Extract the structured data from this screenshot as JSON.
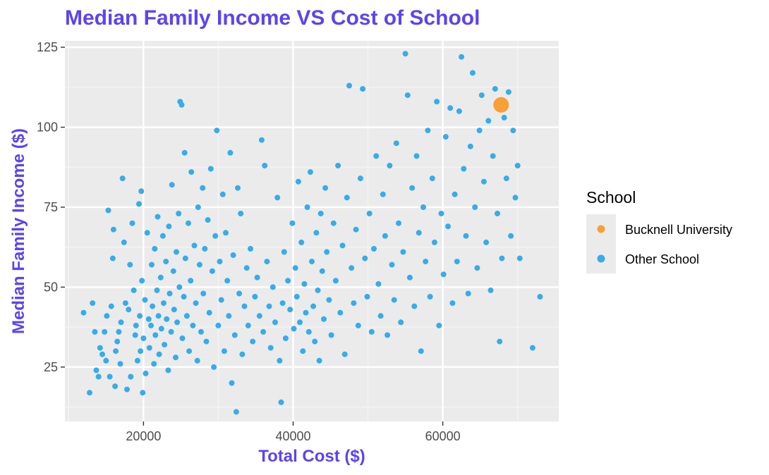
{
  "chart_data": {
    "type": "scatter",
    "title": "Median Family Income VS Cost of School",
    "xlabel": "Total Cost ($)",
    "ylabel": "Median Family Income ($)",
    "xlim": [
      9500,
      75500
    ],
    "ylim": [
      8,
      127
    ],
    "x_ticks": [
      20000,
      40000,
      60000
    ],
    "y_ticks": [
      25,
      50,
      75,
      100,
      125
    ],
    "grid": true,
    "legend": {
      "title": "School",
      "position": "right",
      "entries": [
        {
          "label": "Bucknell University",
          "color": "#F8A035"
        },
        {
          "label": "Other School",
          "color": "#35ACEB"
        }
      ]
    },
    "series": [
      {
        "name": "Bucknell University",
        "color": "#F8A035",
        "points": [
          [
            67800,
            107
          ]
        ]
      },
      {
        "name": "Other School",
        "color": "#35ACEB",
        "points": [
          [
            12000,
            42
          ],
          [
            12800,
            17
          ],
          [
            13200,
            45
          ],
          [
            13500,
            36
          ],
          [
            13700,
            24
          ],
          [
            14000,
            22
          ],
          [
            14200,
            31
          ],
          [
            14500,
            29
          ],
          [
            14800,
            36
          ],
          [
            15000,
            27
          ],
          [
            15100,
            41
          ],
          [
            15300,
            74
          ],
          [
            15500,
            22
          ],
          [
            15700,
            44
          ],
          [
            15900,
            59
          ],
          [
            16000,
            68
          ],
          [
            16200,
            19
          ],
          [
            16300,
            30
          ],
          [
            16500,
            33
          ],
          [
            16700,
            36
          ],
          [
            16900,
            26
          ],
          [
            17000,
            39
          ],
          [
            17200,
            84
          ],
          [
            17400,
            64
          ],
          [
            17600,
            45
          ],
          [
            17800,
            18
          ],
          [
            18000,
            43
          ],
          [
            18200,
            57
          ],
          [
            18300,
            22
          ],
          [
            18500,
            70
          ],
          [
            18700,
            49
          ],
          [
            18900,
            35
          ],
          [
            19000,
            38
          ],
          [
            19200,
            27
          ],
          [
            19400,
            76
          ],
          [
            19500,
            41
          ],
          [
            19600,
            30
          ],
          [
            19700,
            80
          ],
          [
            19800,
            52
          ],
          [
            19900,
            17
          ],
          [
            20000,
            34
          ],
          [
            20200,
            46
          ],
          [
            20300,
            23
          ],
          [
            20500,
            67
          ],
          [
            20700,
            40
          ],
          [
            20800,
            31
          ],
          [
            21000,
            38
          ],
          [
            21100,
            57
          ],
          [
            21200,
            44
          ],
          [
            21400,
            26
          ],
          [
            21500,
            62
          ],
          [
            21600,
            35
          ],
          [
            21800,
            49
          ],
          [
            21900,
            72
          ],
          [
            22000,
            41
          ],
          [
            22100,
            29
          ],
          [
            22300,
            53
          ],
          [
            22400,
            37
          ],
          [
            22600,
            66
          ],
          [
            22700,
            45
          ],
          [
            22800,
            32
          ],
          [
            23000,
            58
          ],
          [
            23100,
            40
          ],
          [
            23300,
            24
          ],
          [
            23400,
            69
          ],
          [
            23500,
            48
          ],
          [
            23700,
            36
          ],
          [
            23800,
            82
          ],
          [
            24000,
            55
          ],
          [
            24100,
            43
          ],
          [
            24300,
            28
          ],
          [
            24400,
            61
          ],
          [
            24500,
            39
          ],
          [
            24700,
            73
          ],
          [
            24800,
            50
          ],
          [
            24900,
            108
          ],
          [
            25100,
            107
          ],
          [
            25200,
            34
          ],
          [
            25400,
            47
          ],
          [
            25500,
            92
          ],
          [
            25600,
            59
          ],
          [
            25800,
            41
          ],
          [
            26000,
            70
          ],
          [
            26100,
            30
          ],
          [
            26300,
            52
          ],
          [
            26400,
            86
          ],
          [
            26600,
            38
          ],
          [
            26800,
            63
          ],
          [
            27000,
            45
          ],
          [
            27200,
            27
          ],
          [
            27300,
            75
          ],
          [
            27500,
            57
          ],
          [
            27700,
            36
          ],
          [
            27900,
            81
          ],
          [
            28000,
            48
          ],
          [
            28200,
            62
          ],
          [
            28400,
            33
          ],
          [
            28600,
            71
          ],
          [
            28800,
            42
          ],
          [
            29000,
            87
          ],
          [
            29200,
            55
          ],
          [
            29400,
            25
          ],
          [
            29600,
            66
          ],
          [
            29800,
            99
          ],
          [
            30000,
            38
          ],
          [
            30200,
            58
          ],
          [
            30400,
            46
          ],
          [
            30600,
            79
          ],
          [
            30800,
            30
          ],
          [
            31000,
            67
          ],
          [
            31200,
            52
          ],
          [
            31400,
            41
          ],
          [
            31600,
            92
          ],
          [
            31800,
            20
          ],
          [
            32000,
            60
          ],
          [
            32200,
            35
          ],
          [
            32400,
            11
          ],
          [
            32600,
            81
          ],
          [
            32800,
            48
          ],
          [
            33000,
            73
          ],
          [
            33200,
            29
          ],
          [
            33500,
            44
          ],
          [
            33800,
            56
          ],
          [
            34000,
            38
          ],
          [
            34300,
            62
          ],
          [
            34600,
            33
          ],
          [
            34900,
            47
          ],
          [
            35200,
            53
          ],
          [
            35500,
            41
          ],
          [
            35800,
            96
          ],
          [
            36000,
            36
          ],
          [
            36200,
            88
          ],
          [
            36500,
            58
          ],
          [
            36800,
            44
          ],
          [
            37000,
            31
          ],
          [
            37300,
            50
          ],
          [
            37600,
            39
          ],
          [
            37900,
            78
          ],
          [
            38200,
            27
          ],
          [
            38400,
            14
          ],
          [
            38600,
            45
          ],
          [
            38800,
            61
          ],
          [
            39000,
            34
          ],
          [
            39300,
            52
          ],
          [
            39600,
            43
          ],
          [
            39900,
            70
          ],
          [
            40100,
            37
          ],
          [
            40300,
            56
          ],
          [
            40500,
            47
          ],
          [
            40700,
            83
          ],
          [
            40900,
            39
          ],
          [
            41100,
            64
          ],
          [
            41300,
            30
          ],
          [
            41500,
            51
          ],
          [
            41700,
            42
          ],
          [
            41900,
            75
          ],
          [
            42100,
            36
          ],
          [
            42300,
            86
          ],
          [
            42500,
            58
          ],
          [
            42700,
            44
          ],
          [
            42900,
            33
          ],
          [
            43100,
            67
          ],
          [
            43300,
            49
          ],
          [
            43500,
            27
          ],
          [
            43700,
            73
          ],
          [
            43900,
            55
          ],
          [
            44100,
            40
          ],
          [
            44300,
            81
          ],
          [
            44500,
            61
          ],
          [
            44800,
            46
          ],
          [
            45100,
            35
          ],
          [
            45400,
            70
          ],
          [
            45700,
            52
          ],
          [
            46000,
            88
          ],
          [
            46300,
            42
          ],
          [
            46600,
            63
          ],
          [
            46900,
            29
          ],
          [
            47200,
            78
          ],
          [
            47500,
            113
          ],
          [
            47800,
            56
          ],
          [
            48100,
            45
          ],
          [
            48400,
            68
          ],
          [
            48700,
            38
          ],
          [
            49000,
            84
          ],
          [
            49300,
            112
          ],
          [
            49600,
            59
          ],
          [
            49900,
            47
          ],
          [
            50200,
            73
          ],
          [
            50500,
            36
          ],
          [
            50800,
            62
          ],
          [
            51100,
            91
          ],
          [
            51400,
            51
          ],
          [
            51700,
            41
          ],
          [
            52000,
            79
          ],
          [
            52300,
            66
          ],
          [
            52600,
            35
          ],
          [
            52900,
            88
          ],
          [
            53200,
            57
          ],
          [
            53500,
            46
          ],
          [
            53800,
            95
          ],
          [
            54100,
            70
          ],
          [
            54400,
            39
          ],
          [
            54700,
            61
          ],
          [
            55000,
            123
          ],
          [
            55300,
            110
          ],
          [
            55600,
            53
          ],
          [
            55900,
            81
          ],
          [
            56200,
            44
          ],
          [
            56500,
            91
          ],
          [
            56800,
            67
          ],
          [
            57100,
            30
          ],
          [
            57400,
            75
          ],
          [
            57700,
            58
          ],
          [
            58000,
            99
          ],
          [
            58300,
            47
          ],
          [
            58600,
            84
          ],
          [
            58900,
            64
          ],
          [
            59200,
            108
          ],
          [
            59500,
            38
          ],
          [
            59800,
            73
          ],
          [
            60100,
            54
          ],
          [
            60400,
            97
          ],
          [
            60700,
            69
          ],
          [
            61000,
            106
          ],
          [
            61300,
            45
          ],
          [
            61600,
            79
          ],
          [
            61900,
            58
          ],
          [
            62200,
            105
          ],
          [
            62500,
            122
          ],
          [
            62800,
            87
          ],
          [
            63100,
            66
          ],
          [
            63400,
            48
          ],
          [
            63700,
            94
          ],
          [
            64000,
            117
          ],
          [
            64300,
            75
          ],
          [
            64600,
            56
          ],
          [
            64900,
            99
          ],
          [
            65200,
            110
          ],
          [
            65500,
            83
          ],
          [
            65800,
            64
          ],
          [
            66100,
            102
          ],
          [
            66400,
            49
          ],
          [
            66700,
            91
          ],
          [
            67000,
            112
          ],
          [
            67300,
            73
          ],
          [
            67600,
            33
          ],
          [
            67900,
            59
          ],
          [
            68200,
            103
          ],
          [
            68500,
            84
          ],
          [
            68800,
            111
          ],
          [
            69100,
            66
          ],
          [
            69400,
            99
          ],
          [
            69700,
            78
          ],
          [
            70000,
            88
          ],
          [
            70300,
            59
          ],
          [
            72000,
            31
          ],
          [
            73000,
            47
          ]
        ]
      }
    ]
  }
}
